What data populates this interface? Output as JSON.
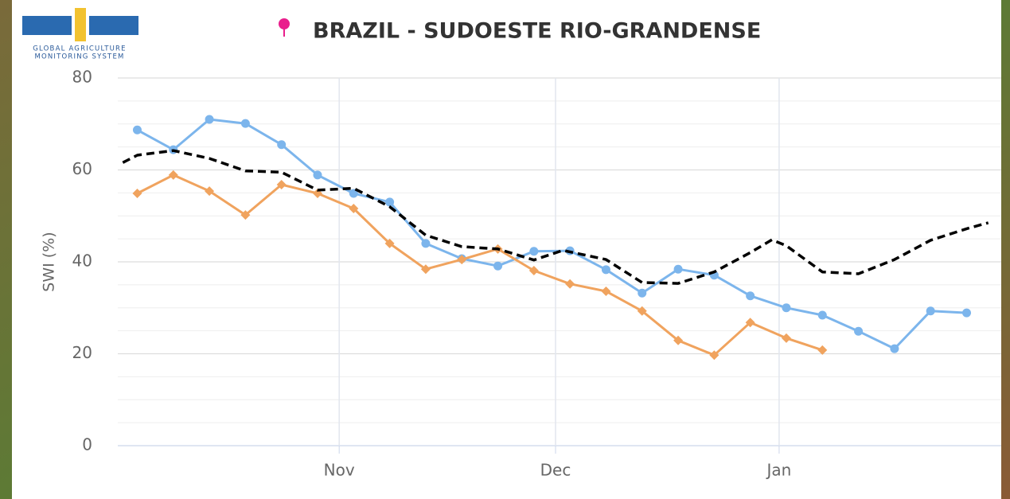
{
  "logo": {
    "line1": "GLOBAL AGRICULTURE",
    "line2": "MONITORING SYSTEM"
  },
  "chart_data": {
    "type": "line",
    "title": "BRAZIL - SUDOESTE RIO-GRANDENSE",
    "y_label": "SWI (%)",
    "xlim": [
      0.3,
      122.8
    ],
    "xticks": [
      {
        "value": 31,
        "label": "Nov"
      },
      {
        "value": 61,
        "label": "Dec"
      },
      {
        "value": 92,
        "label": "Jan"
      }
    ],
    "ylim": [
      0,
      80
    ],
    "yticks": [
      0,
      20,
      40,
      60,
      80
    ],
    "y_minor_step": 5,
    "grid": true,
    "series": [
      {
        "color": "#7cb5ec",
        "marker": "circle",
        "dashed": false,
        "x": [
          3,
          8,
          13,
          18,
          23,
          28,
          33,
          38,
          43,
          48,
          53,
          58,
          63,
          68,
          73,
          78,
          83,
          88,
          93,
          98,
          103,
          108,
          113,
          118
        ],
        "values": [
          68.7,
          64.4,
          71,
          70.1,
          65.5,
          58.9,
          54.9,
          53,
          44,
          40.7,
          39.1,
          42.3,
          42.4,
          38.3,
          33.2,
          38.4,
          37.1,
          32.6,
          30,
          28.4,
          24.9,
          21.1,
          29.3,
          28.9
        ]
      },
      {
        "color": "#f0a35e",
        "marker": "diamond",
        "dashed": false,
        "x": [
          3,
          8,
          13,
          18,
          23,
          28,
          33,
          38,
          43,
          48,
          53,
          58,
          63,
          68,
          73,
          78,
          83,
          88,
          93,
          98
        ],
        "values": [
          54.9,
          58.9,
          55.4,
          50.2,
          56.8,
          54.9,
          51.6,
          44,
          38.4,
          40.5,
          42.8,
          38.1,
          35.2,
          33.6,
          29.3,
          22.9,
          19.7,
          26.8,
          23.4,
          20.8
        ]
      },
      {
        "color": "#000000",
        "marker": "none",
        "dashed": true,
        "x": [
          1,
          3,
          8,
          13,
          18,
          23,
          28,
          33,
          38,
          43,
          48,
          53,
          58,
          62,
          68,
          73,
          78,
          83,
          88,
          91,
          93,
          98,
          103,
          108,
          113,
          118,
          121
        ],
        "values": [
          61.6,
          63.2,
          64.2,
          62.5,
          59.8,
          59.5,
          55.6,
          56,
          52,
          45.8,
          43.3,
          42.8,
          40.4,
          42.5,
          40.5,
          35.5,
          35.3,
          37.8,
          42,
          44.8,
          43.5,
          37.8,
          37.4,
          40.5,
          44.7,
          47.2,
          48.5
        ]
      }
    ]
  }
}
